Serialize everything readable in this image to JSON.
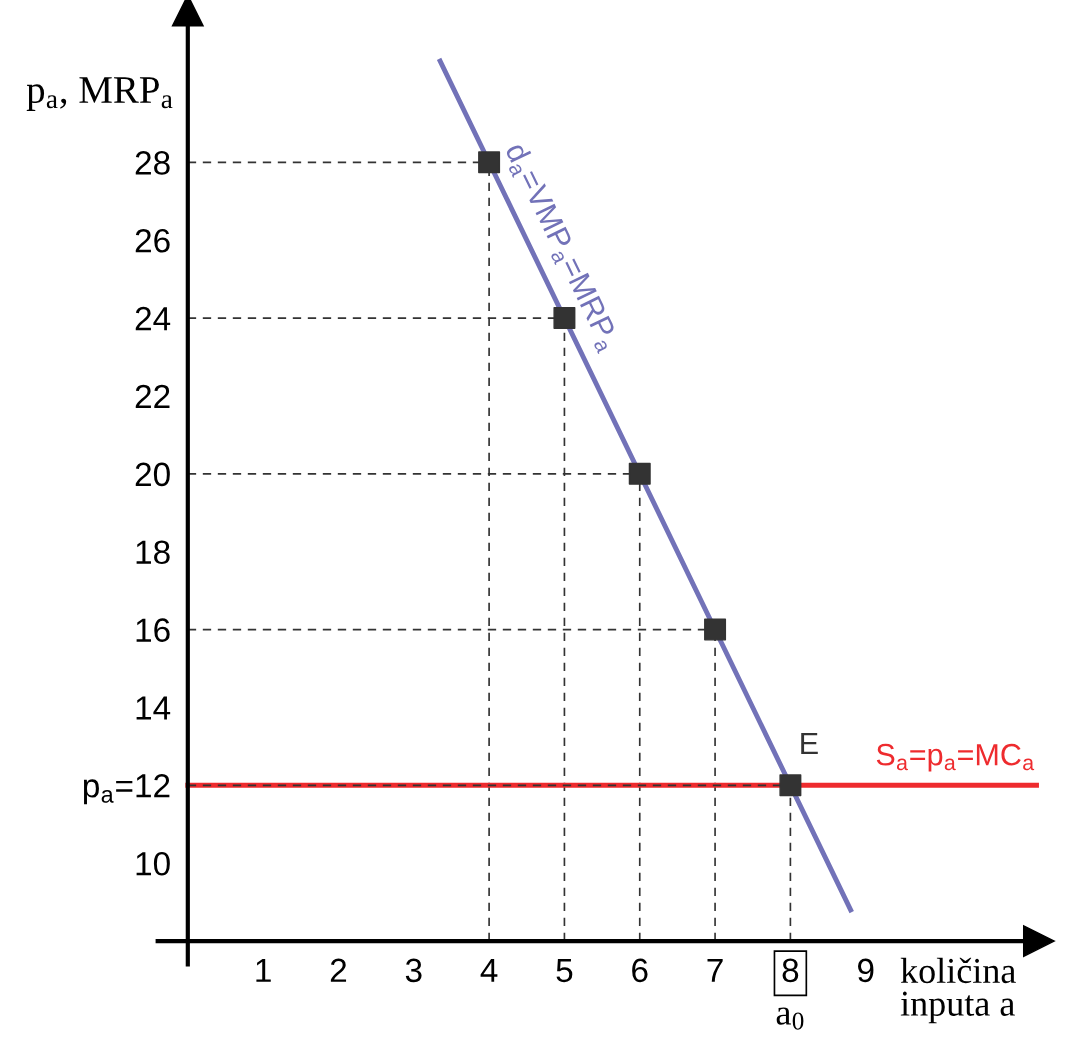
{
  "chart_data": {
    "type": "line",
    "ylabel": "p$_{a}$, MRP$_{a}$",
    "xlabel": "količina\ninputa a",
    "xlim": [
      -0.4,
      11.3
    ],
    "ylim": [
      7.4,
      31.9
    ],
    "xticks": [
      1,
      2,
      3,
      4,
      5,
      6,
      7,
      8,
      9
    ],
    "yticks": [
      10,
      {
        "value": 12,
        "label": "p$_{a}$=12"
      },
      14,
      16,
      18,
      20,
      22,
      24,
      26,
      28
    ],
    "grid": false,
    "legend": false,
    "series": [
      {
        "name": "d$_{a}$=VMP$_{a}$=MRP$_{a}$",
        "color": "#7272b8",
        "x": [
          3.35,
          8.8
        ],
        "values": [
          30.6,
          8.8
        ]
      },
      {
        "type": "scatter",
        "color": "#333333",
        "marker": "square",
        "line_style": "dashed",
        "x": [
          4,
          5,
          6,
          7,
          8
        ],
        "values": [
          28,
          24,
          20,
          16,
          12
        ],
        "errors": [
          [
            8,
            28
          ],
          [
            8,
            24
          ],
          [
            8,
            20
          ],
          [
            8,
            16
          ],
          [
            8,
            12
          ]
        ],
        "xerrors": [
          [
            0,
            4
          ],
          [
            0,
            5
          ],
          [
            0,
            6
          ],
          [
            0,
            7
          ],
          [
            0,
            8
          ]
        ]
      }
    ],
    "ref_lines": [
      {
        "axis": "y",
        "value": 12,
        "label": "S$_{a}$=p$_{a}$=MC$_{a}$",
        "color": "#ee2b2e"
      }
    ],
    "annotations": [
      {
        "text": "E",
        "x": 8,
        "y": 12
      },
      "a$_{0}$"
    ]
  }
}
